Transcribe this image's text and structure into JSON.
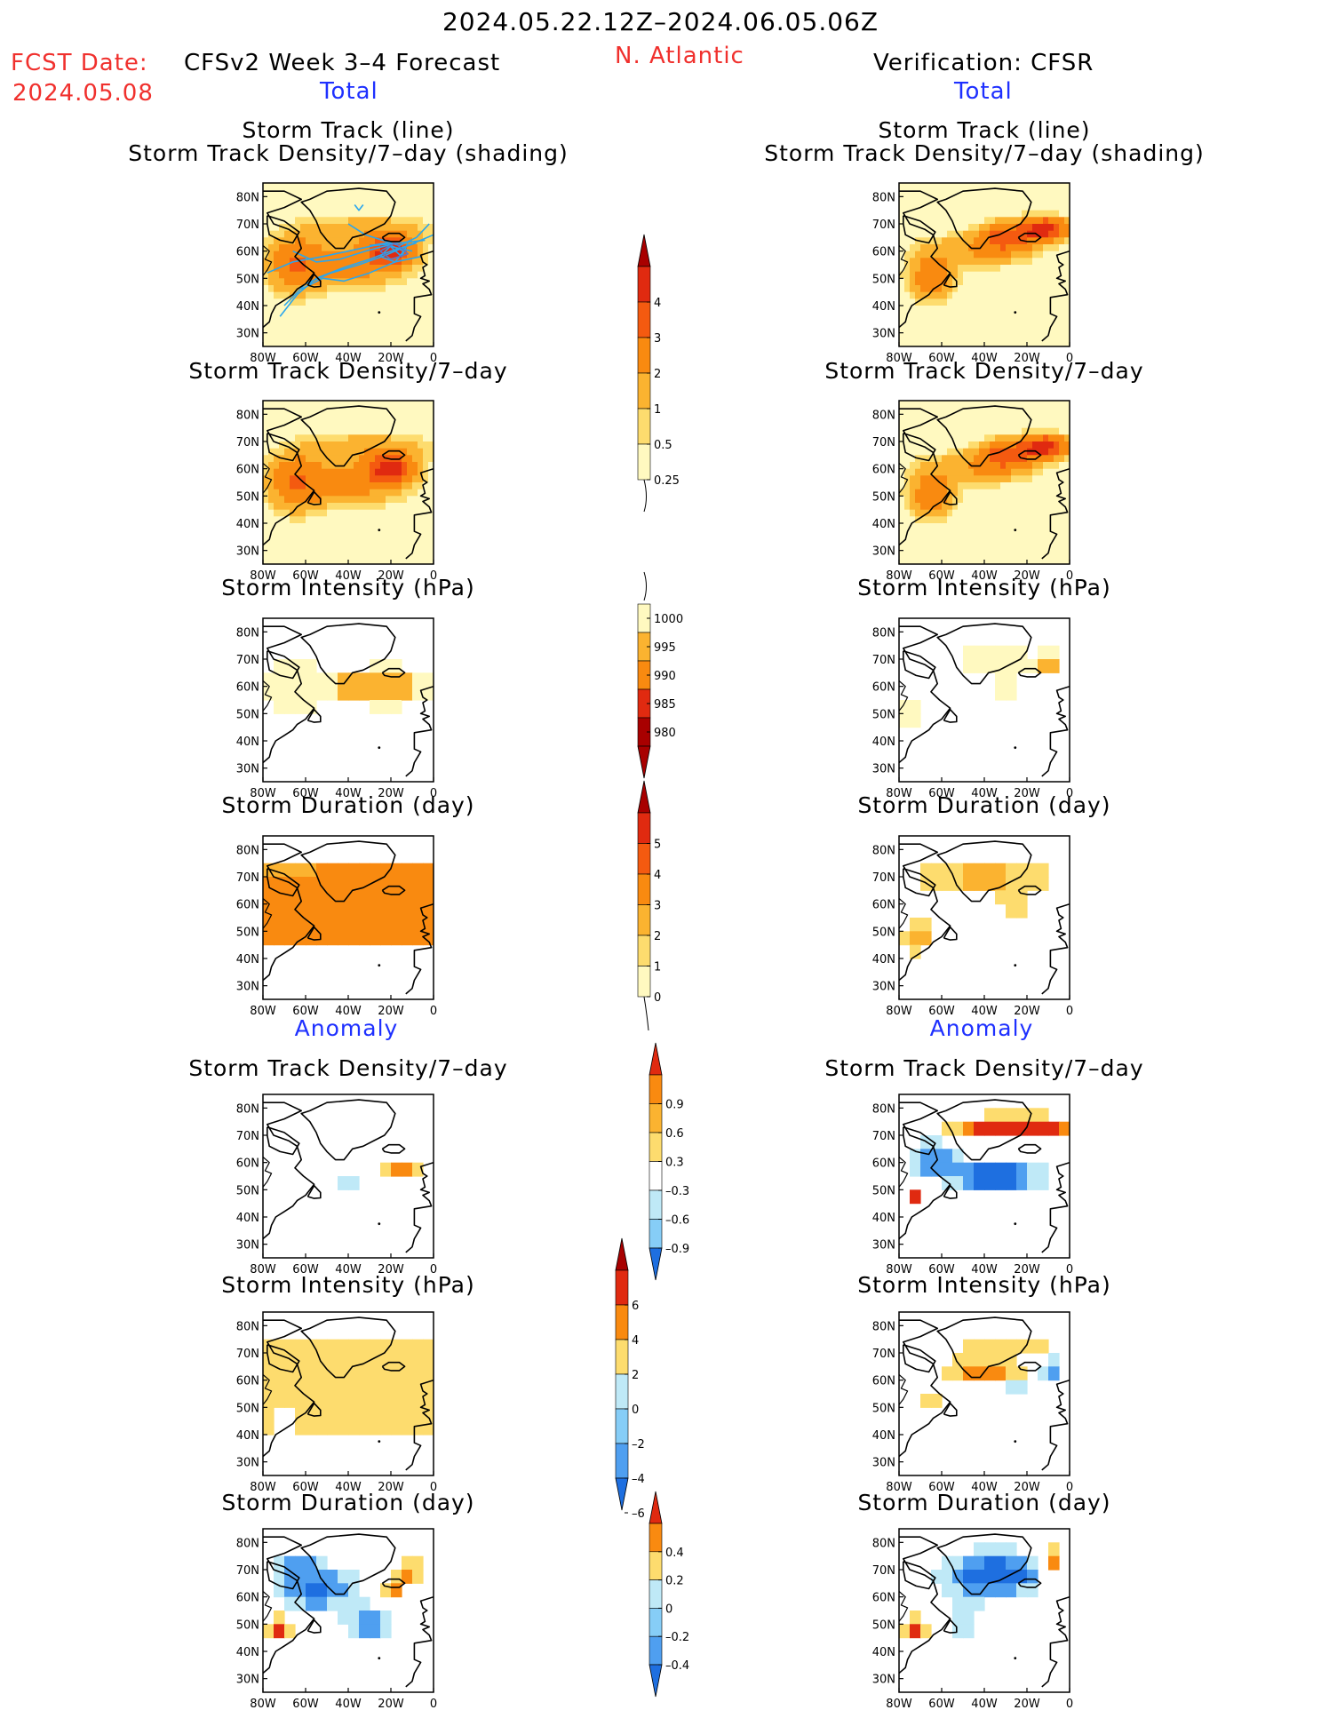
{
  "header": {
    "period": "2024.05.22.12Z–2024.06.05.06Z",
    "region": "N. Atlantic",
    "fcst_label": "FCST Date:",
    "fcst_date": "2024.05.08",
    "left_title": "CFSv2 Week 3–4 Forecast",
    "right_title": "Verification: CFSR",
    "left_total": "Total",
    "right_total": "Total",
    "left_anomaly": "Anomaly",
    "right_anomaly": "Anomaly"
  },
  "panel_titles": {
    "track_line": "Storm Track (line)",
    "track_shading": "Storm Track Density/7–day (shading)",
    "density": "Storm Track Density/7–day",
    "intensity": "Storm Intensity (hPa)",
    "duration": "Storm Duration (day)"
  },
  "colors": {
    "c0": "#fff9c0",
    "c1": "#fddc6e",
    "c2": "#fbb330",
    "c3": "#f98a10",
    "c4": "#f45a10",
    "c5": "#e02a10",
    "c6": "#a80000",
    "b1": "#bfe9f7",
    "b2": "#86cdf7",
    "b3": "#4f9ff0",
    "b4": "#1e6fe0",
    "track": "#2aa6ee",
    "track_dark": "#5a78c8"
  },
  "chart_data": [
    {
      "type": "heatmap",
      "panels": [
        "Storm Track (line) / Storm Track Density/7-day (shading)",
        "Storm Track Density/7-day"
      ],
      "colorbar": {
        "levels": [
          0.25,
          0.5,
          1,
          2,
          3,
          4
        ],
        "labels": [
          "4",
          "3",
          "2",
          "1",
          "0.5",
          "0.25"
        ]
      },
      "xticks": [
        "80W",
        "60W",
        "40W",
        "20W",
        "0"
      ],
      "yticks": [
        "80N",
        "70N",
        "60N",
        "50N",
        "40N",
        "30N"
      ],
      "xlim": [
        -80,
        0
      ],
      "ylim": [
        25,
        85
      ]
    },
    {
      "type": "heatmap",
      "panels": [
        "Storm Intensity (hPa)"
      ],
      "colorbar": {
        "levels": [
          980,
          985,
          990,
          995,
          1000
        ],
        "labels": [
          "1000",
          "995",
          "990",
          "985",
          "980"
        ]
      }
    },
    {
      "type": "heatmap",
      "panels": [
        "Storm Duration (day)"
      ],
      "colorbar": {
        "levels": [
          0,
          1,
          2,
          3,
          4,
          5
        ],
        "labels": [
          "5",
          "4",
          "3",
          "2",
          "1",
          "0"
        ]
      }
    },
    {
      "type": "heatmap",
      "panels": [
        "Anomaly: Storm Track Density/7-day"
      ],
      "colorbar": {
        "levels": [
          -0.9,
          -0.6,
          -0.3,
          0.3,
          0.6,
          0.9
        ],
        "labels": [
          "0.9",
          "0.6",
          "0.3",
          "–0.3",
          "–0.6",
          "–0.9"
        ]
      }
    },
    {
      "type": "heatmap",
      "panels": [
        "Anomaly: Storm Intensity (hPa)"
      ],
      "colorbar": {
        "levels": [
          -6,
          -4,
          -2,
          0,
          2,
          4,
          6
        ],
        "labels": [
          "6",
          "4",
          "2",
          "0",
          "–2",
          "–4",
          "–6"
        ]
      }
    },
    {
      "type": "heatmap",
      "panels": [
        "Anomaly: Storm Duration (day)"
      ],
      "colorbar": {
        "levels": [
          -0.4,
          -0.2,
          0,
          0.2,
          0.4
        ],
        "labels": [
          "0.4",
          "0.2",
          "0",
          "–0.2",
          "–0.4"
        ]
      }
    }
  ]
}
